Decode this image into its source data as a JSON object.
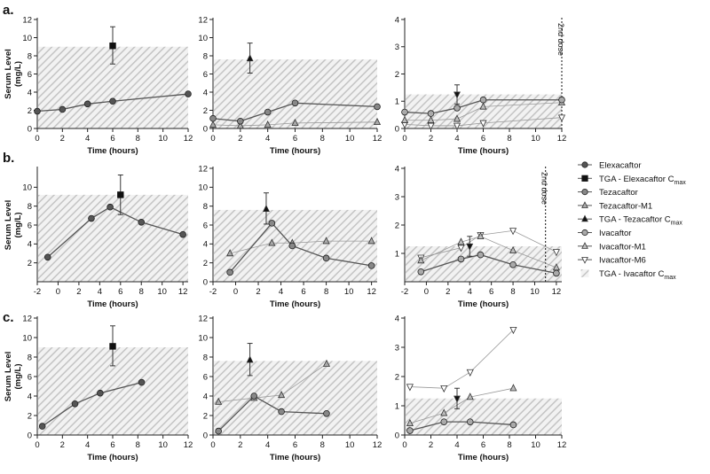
{
  "figure": {
    "row_labels": [
      "a.",
      "b.",
      "c."
    ],
    "ylabel_line1": "Serum Level",
    "ylabel_line2": "(mg/L)",
    "xlabel": "Time (hours)",
    "dose_label": "2nd dose"
  },
  "colors": {
    "elexacaftor": "#555555",
    "tezacaftor": "#888888",
    "ivacaftor": "#aaaaaa",
    "metabolite": "#bdbdbd",
    "tga_marker": "#111111",
    "hatch": "#c8c8c8"
  },
  "legend": [
    {
      "label": "Elexacaftor",
      "sub": "",
      "marker": "circle",
      "fill": "#555555"
    },
    {
      "label": "TGA - Elexacaftor C",
      "sub": "max",
      "marker": "square",
      "fill": "#111111"
    },
    {
      "label": "Tezacaftor",
      "sub": "",
      "marker": "circle",
      "fill": "#888888"
    },
    {
      "label": "Tezacaftor-M1",
      "sub": "",
      "marker": "triangle-up",
      "fill": "#aaaaaa"
    },
    {
      "label": "TGA - Tezacaftor C",
      "sub": "max",
      "marker": "triangle-up",
      "fill": "#111111"
    },
    {
      "label": "Ivacaftor",
      "sub": "",
      "marker": "circle",
      "fill": "#aaaaaa"
    },
    {
      "label": "Ivacaftor-M1",
      "sub": "",
      "marker": "triangle-up",
      "fill": "#bdbdbd"
    },
    {
      "label": "Ivacaftor-M6",
      "sub": "",
      "marker": "triangle-down",
      "fill": "#ffffff"
    },
    {
      "label": "TGA - Ivacaftor C",
      "sub": "max",
      "marker": "hatch",
      "fill": "#ffffff"
    }
  ],
  "chart_data": [
    {
      "id": "a1",
      "type": "line",
      "row": "a.",
      "xlabel": "Time (hours)",
      "ylabel": "Serum Level (mg/L)",
      "xlim": [
        0,
        12
      ],
      "ylim": [
        0,
        12
      ],
      "xticks": [
        0,
        2,
        4,
        6,
        8,
        10,
        12
      ],
      "yticks": [
        0,
        2,
        4,
        6,
        8,
        10,
        12
      ],
      "tga_band": 9.0,
      "series": [
        {
          "name": "Elexacaftor",
          "marker": "circle",
          "fill": "#555555",
          "x": [
            0,
            2,
            4,
            6,
            12
          ],
          "y": [
            1.9,
            2.1,
            2.7,
            3.0,
            3.8
          ]
        }
      ],
      "tga": {
        "name": "TGA - Elexacaftor Cmax",
        "marker": "square",
        "x": 6,
        "y": 9.1,
        "low": 7.1,
        "high": 11.2
      }
    },
    {
      "id": "a2",
      "type": "line",
      "row": "a.",
      "xlabel": "Time (hours)",
      "xlim": [
        0,
        12
      ],
      "ylim": [
        0,
        12
      ],
      "xticks": [
        0,
        2,
        4,
        6,
        8,
        10,
        12
      ],
      "yticks": [
        0,
        2,
        4,
        6,
        8,
        10,
        12
      ],
      "tga_band": 7.6,
      "series": [
        {
          "name": "Tezacaftor",
          "marker": "circle",
          "fill": "#888888",
          "x": [
            0,
            2,
            4,
            6,
            12
          ],
          "y": [
            1.1,
            0.8,
            1.8,
            2.8,
            2.4
          ]
        },
        {
          "name": "Tezacaftor-M1",
          "marker": "triangle-up",
          "fill": "#aaaaaa",
          "x": [
            0,
            2,
            4,
            6,
            12
          ],
          "y": [
            0.4,
            0.3,
            0.4,
            0.6,
            0.7
          ]
        }
      ],
      "tga": {
        "name": "TGA - Tezacaftor Cmax",
        "marker": "triangle-up",
        "x": 2.7,
        "y": 7.7,
        "low": 6.1,
        "high": 9.4
      }
    },
    {
      "id": "a3",
      "type": "line",
      "row": "a.",
      "xlabel": "Time (hours)",
      "xlim": [
        0,
        12
      ],
      "ylim": [
        0,
        4
      ],
      "xticks": [
        0,
        2,
        4,
        6,
        8,
        10,
        12
      ],
      "yticks": [
        0,
        1,
        2,
        3,
        4
      ],
      "tga_band": 1.25,
      "dose_x": 12,
      "series": [
        {
          "name": "Ivacaftor",
          "marker": "circle",
          "fill": "#aaaaaa",
          "x": [
            0,
            2,
            4,
            6,
            12
          ],
          "y": [
            0.6,
            0.55,
            0.75,
            1.05,
            1.05
          ]
        },
        {
          "name": "Ivacaftor-M1",
          "marker": "triangle-up",
          "fill": "#bdbdbd",
          "x": [
            0,
            2,
            4,
            6,
            12
          ],
          "y": [
            0.3,
            0.3,
            0.35,
            0.8,
            0.95
          ]
        },
        {
          "name": "Ivacaftor-M6",
          "marker": "triangle-down",
          "fill": "#ffffff",
          "x": [
            0,
            2,
            4,
            6,
            12
          ],
          "y": [
            0.15,
            0.1,
            0.1,
            0.2,
            0.4
          ]
        }
      ],
      "tga": {
        "name": "TGA - Ivacaftor Cmax",
        "marker": "triangle-down",
        "x": 4,
        "y": 1.25,
        "low": 0.9,
        "high": 1.6
      }
    },
    {
      "id": "b1",
      "type": "line",
      "row": "b.",
      "xlabel": "Time (hours)",
      "ylabel": "Serum Level (mg/L)",
      "xlim": [
        -2,
        12.5
      ],
      "ylim": [
        0,
        12
      ],
      "ybreak": true,
      "xticks": [
        -2,
        0,
        2,
        4,
        6,
        8,
        10,
        12
      ],
      "yticks": [
        2,
        4,
        6,
        8,
        10
      ],
      "tga_band": 9.2,
      "series": [
        {
          "name": "Elexacaftor",
          "marker": "circle",
          "fill": "#555555",
          "x": [
            -1,
            3.2,
            5,
            8,
            12
          ],
          "y": [
            2.6,
            6.7,
            7.9,
            6.3,
            5.0
          ]
        }
      ],
      "tga": {
        "name": "TGA - Elexacaftor Cmax",
        "marker": "square",
        "x": 6,
        "y": 9.2,
        "low": 7.1,
        "high": 11.3
      }
    },
    {
      "id": "b2",
      "type": "line",
      "row": "b.",
      "xlabel": "Time (hours)",
      "xlim": [
        -2,
        12.5
      ],
      "ylim": [
        0,
        12
      ],
      "xticks": [
        -2,
        0,
        2,
        4,
        6,
        8,
        10,
        12
      ],
      "yticks": [
        0,
        2,
        4,
        6,
        8,
        10,
        12
      ],
      "tga_band": 7.6,
      "series": [
        {
          "name": "Tezacaftor",
          "marker": "circle",
          "fill": "#888888",
          "x": [
            -0.5,
            3.2,
            5,
            8,
            12
          ],
          "y": [
            1.0,
            6.2,
            3.8,
            2.5,
            1.7
          ]
        },
        {
          "name": "Tezacaftor-M1",
          "marker": "triangle-up",
          "fill": "#aaaaaa",
          "x": [
            -0.5,
            3.2,
            5,
            8,
            12
          ],
          "y": [
            3.0,
            4.1,
            4.1,
            4.3,
            4.3
          ]
        }
      ],
      "tga": {
        "name": "TGA - Tezacaftor Cmax",
        "marker": "triangle-up",
        "x": 2.7,
        "y": 7.7,
        "low": 6.1,
        "high": 9.4
      }
    },
    {
      "id": "b3",
      "type": "line",
      "row": "b.",
      "xlabel": "Time (hours)",
      "xlim": [
        -2,
        12.5
      ],
      "ylim": [
        0,
        4
      ],
      "xticks": [
        -2,
        0,
        2,
        4,
        6,
        8,
        10,
        12
      ],
      "yticks": [
        1,
        2,
        3,
        4
      ],
      "tga_band": 1.25,
      "dose_x": 11,
      "series": [
        {
          "name": "Ivacaftor",
          "marker": "circle",
          "fill": "#aaaaaa",
          "x": [
            -0.5,
            3.2,
            5,
            8,
            12
          ],
          "y": [
            0.35,
            0.8,
            0.95,
            0.6,
            0.3
          ]
        },
        {
          "name": "Ivacaftor-M1",
          "marker": "triangle-up",
          "fill": "#bdbdbd",
          "x": [
            -0.5,
            3.2,
            5,
            8,
            12
          ],
          "y": [
            0.75,
            1.4,
            1.6,
            1.1,
            0.5
          ]
        },
        {
          "name": "Ivacaftor-M6",
          "marker": "triangle-down",
          "fill": "#ffffff",
          "x": [
            -0.5,
            3.2,
            5,
            8,
            12
          ],
          "y": [
            0.85,
            1.2,
            1.65,
            1.8,
            1.05
          ]
        }
      ],
      "tga": {
        "name": "TGA - Ivacaftor Cmax",
        "marker": "triangle-down",
        "x": 4,
        "y": 1.25,
        "low": 0.9,
        "high": 1.6
      }
    },
    {
      "id": "c1",
      "type": "line",
      "row": "c.",
      "xlabel": "Time (hours)",
      "ylabel": "Serum Level (mg/L)",
      "xlim": [
        0,
        12
      ],
      "ylim": [
        0,
        12
      ],
      "xticks": [
        0,
        2,
        4,
        6,
        8,
        10,
        12
      ],
      "yticks": [
        0,
        2,
        4,
        6,
        8,
        10,
        12
      ],
      "tga_band": 9.0,
      "series": [
        {
          "name": "Elexacaftor",
          "marker": "circle",
          "fill": "#555555",
          "x": [
            0.4,
            3,
            5,
            8.3
          ],
          "y": [
            0.9,
            3.2,
            4.3,
            5.4
          ]
        }
      ],
      "tga": {
        "name": "TGA - Elexacaftor Cmax",
        "marker": "square",
        "x": 6,
        "y": 9.1,
        "low": 7.1,
        "high": 11.2
      }
    },
    {
      "id": "c2",
      "type": "line",
      "row": "c.",
      "xlabel": "Time (hours)",
      "xlim": [
        0,
        12
      ],
      "ylim": [
        0,
        12
      ],
      "xticks": [
        0,
        2,
        4,
        6,
        8,
        10,
        12
      ],
      "yticks": [
        0,
        2,
        4,
        6,
        8,
        10,
        12
      ],
      "tga_band": 7.6,
      "series": [
        {
          "name": "Tezacaftor",
          "marker": "circle",
          "fill": "#888888",
          "x": [
            0.4,
            3,
            5,
            8.3
          ],
          "y": [
            0.4,
            4.0,
            2.4,
            2.2
          ]
        },
        {
          "name": "Tezacaftor-M1",
          "marker": "triangle-up",
          "fill": "#aaaaaa",
          "x": [
            0.4,
            3,
            5,
            8.3
          ],
          "y": [
            3.4,
            3.8,
            4.1,
            7.3
          ]
        }
      ],
      "tga": {
        "name": "TGA - Tezacaftor Cmax",
        "marker": "triangle-up",
        "x": 2.7,
        "y": 7.7,
        "low": 6.1,
        "high": 9.4
      }
    },
    {
      "id": "c3",
      "type": "line",
      "row": "c.",
      "xlabel": "Time (hours)",
      "xlim": [
        0,
        12
      ],
      "ylim": [
        0,
        4
      ],
      "xticks": [
        0,
        2,
        4,
        6,
        8,
        10,
        12
      ],
      "yticks": [
        0,
        1,
        2,
        3,
        4
      ],
      "tga_band": 1.25,
      "series": [
        {
          "name": "Ivacaftor",
          "marker": "circle",
          "fill": "#aaaaaa",
          "x": [
            0.4,
            3,
            5,
            8.3
          ],
          "y": [
            0.15,
            0.45,
            0.45,
            0.35
          ]
        },
        {
          "name": "Ivacaftor-M1",
          "marker": "triangle-up",
          "fill": "#bdbdbd",
          "x": [
            0.4,
            3,
            5,
            8.3
          ],
          "y": [
            0.4,
            0.75,
            1.3,
            1.6
          ]
        },
        {
          "name": "Ivacaftor-M6",
          "marker": "triangle-down",
          "fill": "#ffffff",
          "x": [
            0.4,
            3,
            5,
            8.3
          ],
          "y": [
            1.65,
            1.6,
            2.15,
            3.6
          ]
        }
      ],
      "tga": {
        "name": "TGA - Ivacaftor Cmax",
        "marker": "triangle-down",
        "x": 4,
        "y": 1.25,
        "low": 0.9,
        "high": 1.6
      }
    }
  ]
}
